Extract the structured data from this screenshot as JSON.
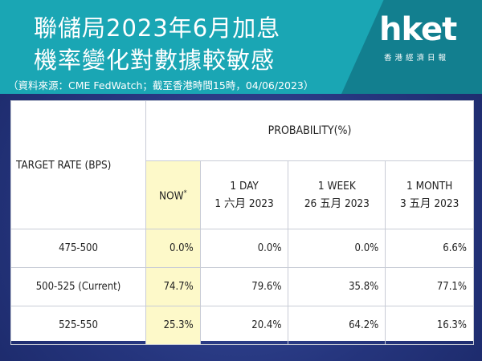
{
  "header": {
    "title_line1": "聯儲局2023年6月加息",
    "title_line2": "機率變化對數據較敏感",
    "source": "（資料來源：CME FedWatch；截至香港時間15時，04/06/2023）"
  },
  "logo": {
    "text": "hket",
    "subtext": "香港經濟日報"
  },
  "colors": {
    "header_bg": "#1aa6b4",
    "page_bg": "#25357d",
    "now_highlight": "#fdf9c9"
  },
  "table": {
    "target_header": "TARGET RATE (BPS)",
    "probability_header": "PROBABILITY(%)",
    "columns": [
      {
        "line1": "NOW",
        "line2": "",
        "marker": "*"
      },
      {
        "line1": "1 DAY",
        "line2": "1 六月 2023",
        "marker": ""
      },
      {
        "line1": "1 WEEK",
        "line2": "26 五月 2023",
        "marker": ""
      },
      {
        "line1": "1 MONTH",
        "line2": "3 五月 2023",
        "marker": ""
      }
    ],
    "rows": [
      {
        "rate": "475-500",
        "values": [
          "0.0%",
          "0.0%",
          "0.0%",
          "6.6%"
        ]
      },
      {
        "rate": "500-525 (Current)",
        "values": [
          "74.7%",
          "79.6%",
          "35.8%",
          "77.1%"
        ]
      },
      {
        "rate": "525-550",
        "values": [
          "25.3%",
          "20.4%",
          "64.2%",
          "16.3%"
        ]
      }
    ]
  }
}
